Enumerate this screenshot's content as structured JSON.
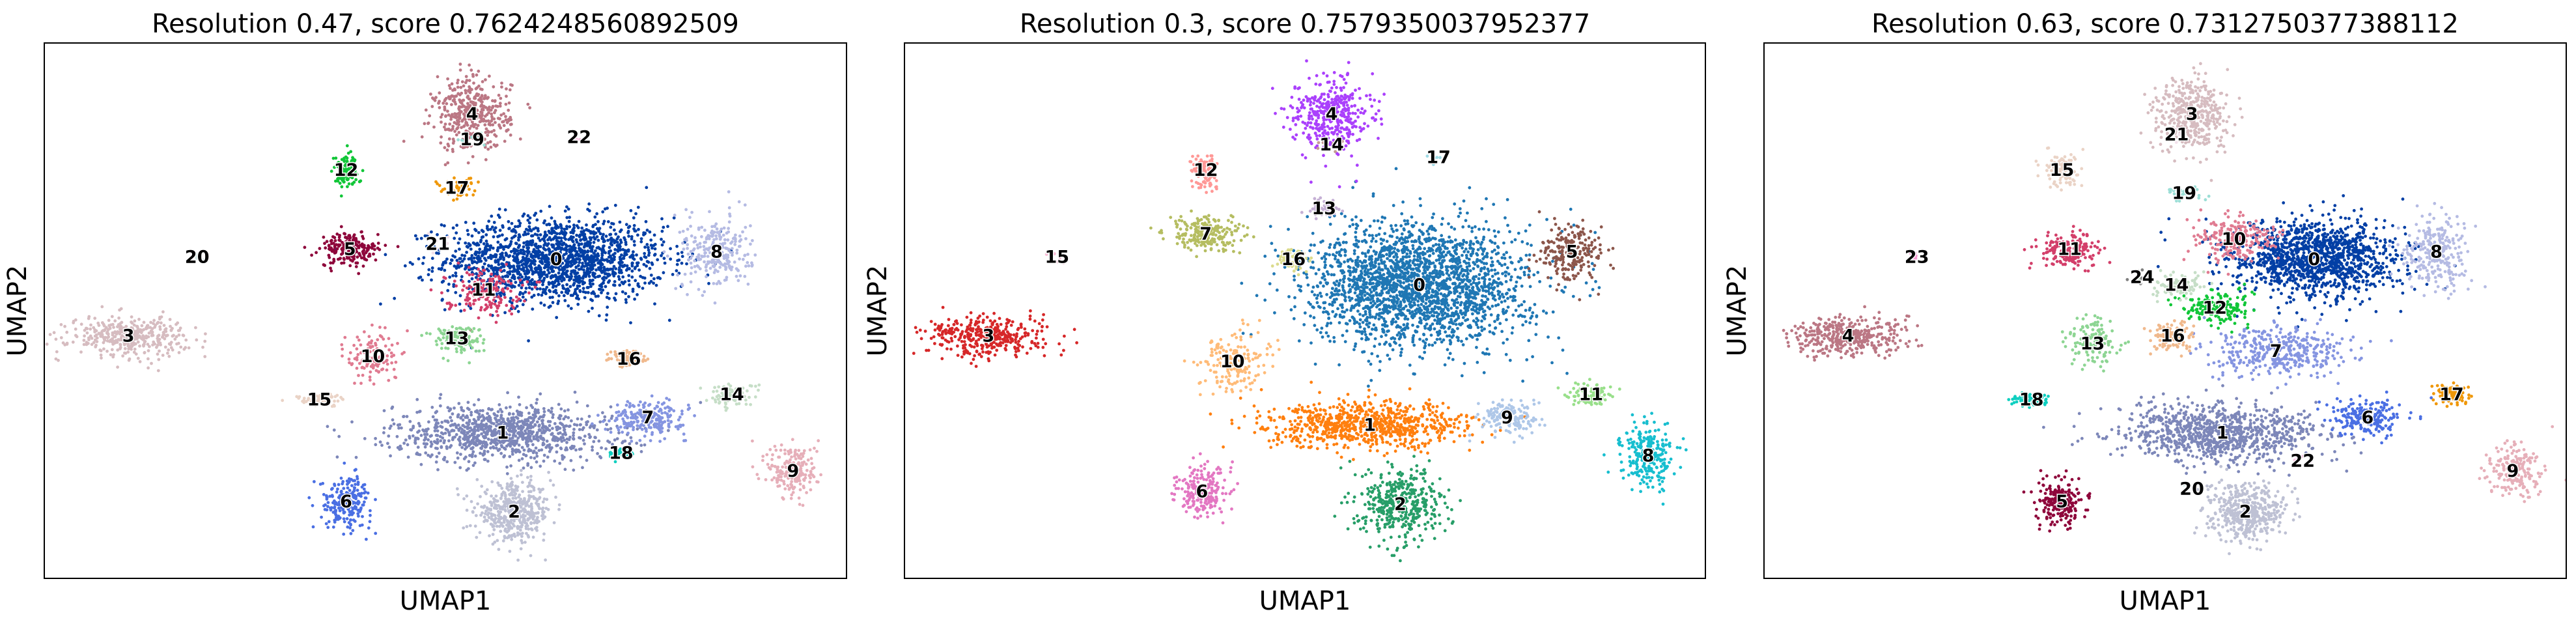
{
  "chart_data": [
    {
      "type": "scatter",
      "title": "Resolution 0.47, score 0.7624248560892509",
      "xlabel": "UMAP1",
      "ylabel": "UMAP2",
      "grid": false,
      "legend": "on data",
      "clusters": [
        {
          "name": "0",
          "color": "#023fa5",
          "center": [
            13.4,
            11.5
          ],
          "spread": [
            2.6,
            1.5
          ],
          "n": 1700
        },
        {
          "name": "1",
          "color": "#7d87b9",
          "center": [
            12.0,
            4.7
          ],
          "spread": [
            2.6,
            1.0
          ],
          "n": 1000
        },
        {
          "name": "2",
          "color": "#bec1d4",
          "center": [
            12.3,
            1.6
          ],
          "spread": [
            0.9,
            1.0
          ],
          "n": 450
        },
        {
          "name": "3",
          "color": "#d6bcc0",
          "center": [
            2.2,
            8.5
          ],
          "spread": [
            1.4,
            0.7
          ],
          "n": 380
        },
        {
          "name": "4",
          "color": "#bb7784",
          "center": [
            11.2,
            17.2
          ],
          "spread": [
            0.9,
            1.3
          ],
          "n": 400
        },
        {
          "name": "5",
          "color": "#8e063b",
          "center": [
            8.0,
            11.9
          ],
          "spread": [
            0.7,
            0.6
          ],
          "n": 200
        },
        {
          "name": "6",
          "color": "#4a6fe3",
          "center": [
            7.9,
            2.0
          ],
          "spread": [
            0.6,
            0.9
          ],
          "n": 220
        },
        {
          "name": "7",
          "color": "#8595e1",
          "center": [
            15.8,
            5.3
          ],
          "spread": [
            0.9,
            0.6
          ],
          "n": 220
        },
        {
          "name": "8",
          "color": "#b5bbe3",
          "center": [
            17.6,
            11.8
          ],
          "spread": [
            0.8,
            1.3
          ],
          "n": 260
        },
        {
          "name": "9",
          "color": "#e6afb9",
          "center": [
            19.6,
            3.2
          ],
          "spread": [
            0.6,
            1.0
          ],
          "n": 200
        },
        {
          "name": "10",
          "color": "#e07b91",
          "center": [
            8.6,
            7.7
          ],
          "spread": [
            0.6,
            1.0
          ],
          "n": 120
        },
        {
          "name": "11",
          "color": "#d33f6a",
          "center": [
            11.5,
            10.3
          ],
          "spread": [
            0.9,
            0.8
          ],
          "n": 160
        },
        {
          "name": "12",
          "color": "#11c638",
          "center": [
            7.9,
            15.0
          ],
          "spread": [
            0.3,
            0.6
          ],
          "n": 110
        },
        {
          "name": "13",
          "color": "#8dd593",
          "center": [
            10.8,
            8.4
          ],
          "spread": [
            0.6,
            0.5
          ],
          "n": 130
        },
        {
          "name": "14",
          "color": "#c6dec7",
          "center": [
            18.0,
            6.2
          ],
          "spread": [
            0.6,
            0.4
          ],
          "n": 90
        },
        {
          "name": "15",
          "color": "#ead3c6",
          "center": [
            7.2,
            6.0
          ],
          "spread": [
            0.6,
            0.2
          ],
          "n": 60
        },
        {
          "name": "16",
          "color": "#f0b98d",
          "center": [
            15.3,
            7.6
          ],
          "spread": [
            0.5,
            0.3
          ],
          "n": 70
        },
        {
          "name": "17",
          "color": "#ef9708",
          "center": [
            10.8,
            14.3
          ],
          "spread": [
            0.5,
            0.4
          ],
          "n": 40
        },
        {
          "name": "18",
          "color": "#0fcfc0",
          "center": [
            15.1,
            3.9
          ],
          "spread": [
            0.3,
            0.3
          ],
          "n": 35
        },
        {
          "name": "19",
          "color": "#9cded6",
          "center": [
            11.2,
            16.2
          ],
          "spread": [
            0.3,
            0.2
          ],
          "n": 15
        },
        {
          "name": "20",
          "color": "#d5eae7",
          "center": [
            4.0,
            11.6
          ],
          "spread": [
            0.2,
            0.2
          ],
          "n": 8
        },
        {
          "name": "21",
          "color": "#f3e1eb",
          "center": [
            10.3,
            12.1
          ],
          "spread": [
            0.3,
            0.3
          ],
          "n": 10
        },
        {
          "name": "22",
          "color": "#f6c4e1",
          "center": [
            14.0,
            16.3
          ],
          "spread": [
            0.2,
            0.2
          ],
          "n": 5
        }
      ]
    },
    {
      "type": "scatter",
      "title": "Resolution 0.3, score 0.7579350037952377",
      "xlabel": "UMAP1",
      "ylabel": "UMAP2",
      "grid": false,
      "legend": "on data",
      "clusters": [
        {
          "name": "0",
          "color": "#1f77b4",
          "center": [
            13.5,
            10.5
          ],
          "spread": [
            2.6,
            2.2
          ],
          "n": 2300
        },
        {
          "name": "1",
          "color": "#ff7f0e",
          "center": [
            12.2,
            5.0
          ],
          "spread": [
            2.4,
            0.8
          ],
          "n": 800
        },
        {
          "name": "2",
          "color": "#279e68",
          "center": [
            13.0,
            1.9
          ],
          "spread": [
            1.0,
            1.3
          ],
          "n": 420
        },
        {
          "name": "3",
          "color": "#d62728",
          "center": [
            2.2,
            8.5
          ],
          "spread": [
            1.4,
            0.7
          ],
          "n": 380
        },
        {
          "name": "4",
          "color": "#aa40fc",
          "center": [
            11.2,
            17.2
          ],
          "spread": [
            0.9,
            1.3
          ],
          "n": 400
        },
        {
          "name": "5",
          "color": "#8c564b",
          "center": [
            17.5,
            11.8
          ],
          "spread": [
            0.8,
            1.0
          ],
          "n": 220
        },
        {
          "name": "6",
          "color": "#e377c2",
          "center": [
            7.8,
            2.4
          ],
          "spread": [
            0.6,
            0.9
          ],
          "n": 220
        },
        {
          "name": "7",
          "color": "#b5bd61",
          "center": [
            7.9,
            12.5
          ],
          "spread": [
            0.9,
            0.6
          ],
          "n": 220
        },
        {
          "name": "8",
          "color": "#17becf",
          "center": [
            19.5,
            3.8
          ],
          "spread": [
            0.6,
            1.1
          ],
          "n": 250
        },
        {
          "name": "9",
          "color": "#aec7e8",
          "center": [
            15.8,
            5.3
          ],
          "spread": [
            0.7,
            0.6
          ],
          "n": 160
        },
        {
          "name": "10",
          "color": "#ffbb78",
          "center": [
            8.6,
            7.5
          ],
          "spread": [
            0.8,
            1.1
          ],
          "n": 170
        },
        {
          "name": "11",
          "color": "#98df8a",
          "center": [
            18.0,
            6.2
          ],
          "spread": [
            0.6,
            0.4
          ],
          "n": 90
        },
        {
          "name": "12",
          "color": "#ff9896",
          "center": [
            7.9,
            15.0
          ],
          "spread": [
            0.3,
            0.6
          ],
          "n": 100
        },
        {
          "name": "13",
          "color": "#c5b0d5",
          "center": [
            11.0,
            13.5
          ],
          "spread": [
            0.4,
            0.4
          ],
          "n": 50
        },
        {
          "name": "14",
          "color": "#c49c94",
          "center": [
            11.2,
            16.0
          ],
          "spread": [
            0.3,
            0.2
          ],
          "n": 15
        },
        {
          "name": "15",
          "color": "#f7b6d2",
          "center": [
            4.0,
            11.6
          ],
          "spread": [
            0.2,
            0.2
          ],
          "n": 8
        },
        {
          "name": "16",
          "color": "#dbdb8d",
          "center": [
            10.2,
            11.5
          ],
          "spread": [
            0.4,
            0.5
          ],
          "n": 60
        },
        {
          "name": "17",
          "color": "#9edae5",
          "center": [
            14.0,
            15.5
          ],
          "spread": [
            0.2,
            0.2
          ],
          "n": 5
        }
      ]
    },
    {
      "type": "scatter",
      "title": "Resolution 0.63, score 0.7312750377388112",
      "xlabel": "UMAP1",
      "ylabel": "UMAP2",
      "grid": false,
      "legend": "on data",
      "clusters": [
        {
          "name": "0",
          "color": "#023fa5",
          "center": [
            14.4,
            11.5
          ],
          "spread": [
            2.0,
            1.4
          ],
          "n": 1300
        },
        {
          "name": "1",
          "color": "#7d87b9",
          "center": [
            12.0,
            4.7
          ],
          "spread": [
            2.4,
            1.0
          ],
          "n": 950
        },
        {
          "name": "2",
          "color": "#bec1d4",
          "center": [
            12.6,
            1.6
          ],
          "spread": [
            0.9,
            1.0
          ],
          "n": 450
        },
        {
          "name": "3",
          "color": "#d6bcc0",
          "center": [
            11.2,
            17.2
          ],
          "spread": [
            0.9,
            1.3
          ],
          "n": 400
        },
        {
          "name": "4",
          "color": "#bb7784",
          "center": [
            2.2,
            8.5
          ],
          "spread": [
            1.4,
            0.7
          ],
          "n": 380
        },
        {
          "name": "5",
          "color": "#8e063b",
          "center": [
            7.8,
            2.0
          ],
          "spread": [
            0.6,
            0.8
          ],
          "n": 200
        },
        {
          "name": "6",
          "color": "#4a6fe3",
          "center": [
            15.8,
            5.3
          ],
          "spread": [
            0.9,
            0.6
          ],
          "n": 210
        },
        {
          "name": "7",
          "color": "#8595e1",
          "center": [
            13.4,
            7.9
          ],
          "spread": [
            1.6,
            0.9
          ],
          "n": 400
        },
        {
          "name": "8",
          "color": "#b5bbe3",
          "center": [
            17.6,
            11.8
          ],
          "spread": [
            0.8,
            1.3
          ],
          "n": 260
        },
        {
          "name": "9",
          "color": "#e6afb9",
          "center": [
            19.6,
            3.2
          ],
          "spread": [
            0.6,
            1.0
          ],
          "n": 200
        },
        {
          "name": "10",
          "color": "#e07b91",
          "center": [
            12.3,
            12.3
          ],
          "spread": [
            1.0,
            0.8
          ],
          "n": 220
        },
        {
          "name": "11",
          "color": "#d33f6a",
          "center": [
            8.0,
            11.9
          ],
          "spread": [
            0.7,
            0.6
          ],
          "n": 200
        },
        {
          "name": "12",
          "color": "#11c638",
          "center": [
            11.8,
            9.6
          ],
          "spread": [
            0.8,
            0.6
          ],
          "n": 160
        },
        {
          "name": "13",
          "color": "#8dd593",
          "center": [
            8.6,
            8.2
          ],
          "spread": [
            0.6,
            0.9
          ],
          "n": 130
        },
        {
          "name": "14",
          "color": "#c6dec7",
          "center": [
            10.8,
            10.5
          ],
          "spread": [
            0.6,
            0.5
          ],
          "n": 110
        },
        {
          "name": "15",
          "color": "#ead3c6",
          "center": [
            7.8,
            15.0
          ],
          "spread": [
            0.4,
            0.6
          ],
          "n": 110
        },
        {
          "name": "16",
          "color": "#f0b98d",
          "center": [
            10.7,
            8.5
          ],
          "spread": [
            0.5,
            0.5
          ],
          "n": 100
        },
        {
          "name": "17",
          "color": "#ef9708",
          "center": [
            18.0,
            6.2
          ],
          "spread": [
            0.5,
            0.4
          ],
          "n": 90
        },
        {
          "name": "18",
          "color": "#0fcfc0",
          "center": [
            7.0,
            6.0
          ],
          "spread": [
            0.5,
            0.25
          ],
          "n": 60
        },
        {
          "name": "19",
          "color": "#9cded6",
          "center": [
            11.0,
            14.1
          ],
          "spread": [
            0.5,
            0.3
          ],
          "n": 30
        },
        {
          "name": "20",
          "color": "#d5eae7",
          "center": [
            11.2,
            2.5
          ],
          "spread": [
            0.2,
            0.2
          ],
          "n": 6
        },
        {
          "name": "21",
          "color": "#f3e1eb",
          "center": [
            10.8,
            16.4
          ],
          "spread": [
            0.2,
            0.2
          ],
          "n": 6
        },
        {
          "name": "22",
          "color": "#f6c4e1",
          "center": [
            14.1,
            3.6
          ],
          "spread": [
            0.3,
            0.2
          ],
          "n": 10
        },
        {
          "name": "23",
          "color": "#f79cd4",
          "center": [
            4.0,
            11.6
          ],
          "spread": [
            0.2,
            0.2
          ],
          "n": 8
        },
        {
          "name": "24",
          "color": "#7f7f7f",
          "center": [
            9.9,
            10.8
          ],
          "spread": [
            0.3,
            0.3
          ],
          "n": 12
        }
      ]
    }
  ]
}
